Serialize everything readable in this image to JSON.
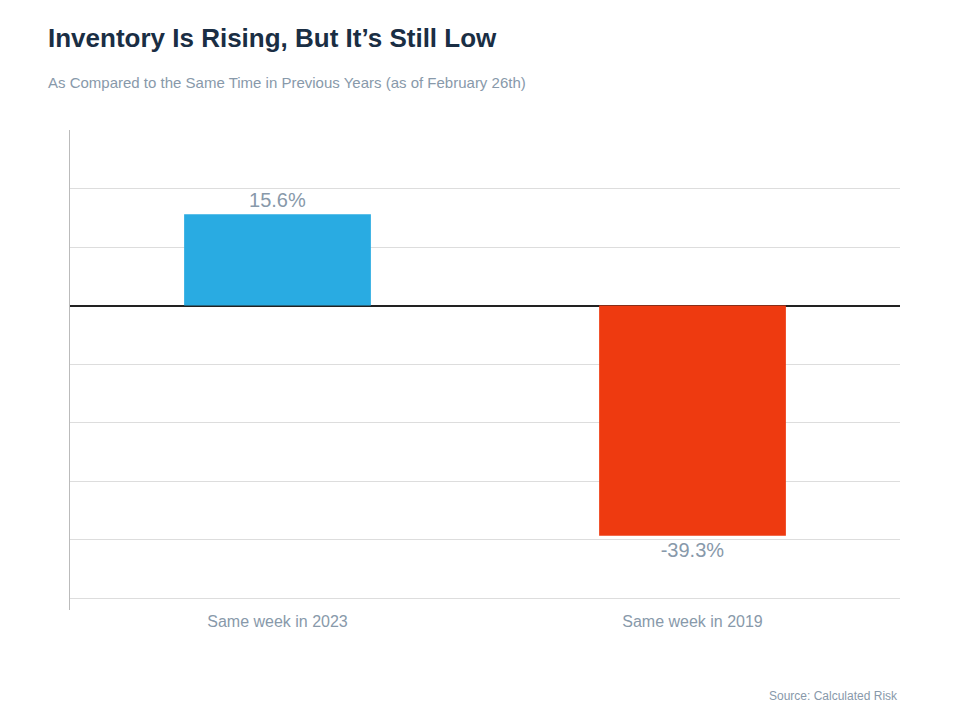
{
  "chart_data": {
    "type": "bar",
    "title": "Inventory Is Rising, But It’s Still Low",
    "subtitle": "As Compared to the Same Time in Previous Years (as of February 26th)",
    "annotations": [
      "Source: Calculated Risk"
    ],
    "categories": [
      "Same week in 2023",
      "Same week in 2019"
    ],
    "values": [
      15.6,
      -39.3
    ],
    "value_labels": [
      "15.6%",
      "-39.3%"
    ],
    "colors": [
      "#29ABE2",
      "#EE3A10"
    ],
    "ylim": [
      -52,
      30
    ],
    "yticks": [
      -50,
      -40,
      -30,
      -20,
      -10,
      0,
      10,
      20,
      30
    ],
    "grid": true,
    "data_labels": true,
    "tick_labels": "x"
  }
}
